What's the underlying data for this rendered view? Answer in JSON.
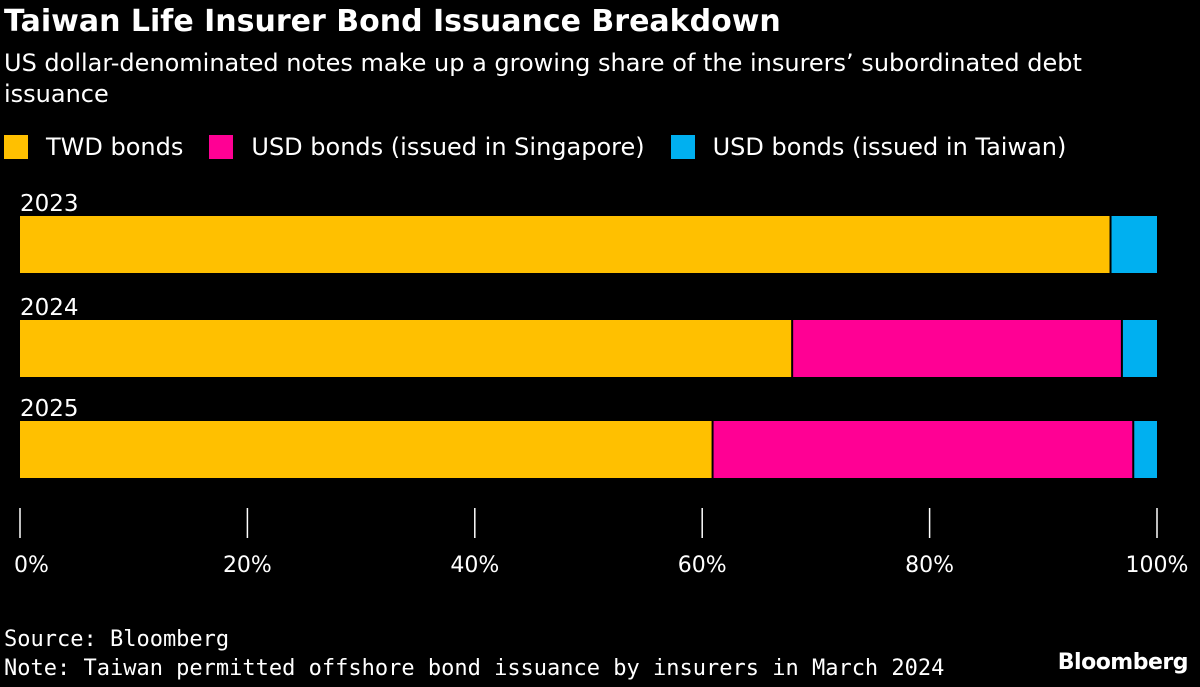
{
  "header": {
    "title": "Taiwan Life Insurer Bond Issuance Breakdown",
    "subtitle": "US dollar-denominated notes make up a growing share of the insurers’ subordinated debt issuance"
  },
  "legend": [
    {
      "label": "TWD bonds",
      "color": "#FFC000"
    },
    {
      "label": "USD bonds (issued in Singapore)",
      "color": "#FF0094"
    },
    {
      "label": "USD bonds (issued in Taiwan)",
      "color": "#00B0F0"
    }
  ],
  "chart_data": {
    "type": "bar",
    "orientation": "horizontal",
    "stacked": true,
    "categories": [
      "2023",
      "2024",
      "2025"
    ],
    "series": [
      {
        "name": "TWD bonds",
        "color": "#FFC000",
        "values": [
          96,
          68,
          61
        ]
      },
      {
        "name": "USD bonds (issued in Singapore)",
        "color": "#FF0094",
        "values": [
          0,
          29,
          37
        ]
      },
      {
        "name": "USD bonds (issued in Taiwan)",
        "color": "#00B0F0",
        "values": [
          4,
          3,
          2
        ]
      }
    ],
    "xlim": [
      0,
      100
    ],
    "xticks": [
      0,
      20,
      40,
      60,
      80,
      100
    ],
    "xtick_labels": [
      "0%",
      "20%",
      "40%",
      "60%",
      "80%",
      "100%"
    ],
    "xlabel": "",
    "ylabel": ""
  },
  "footer": {
    "source": "Source: Bloomberg",
    "note": "Note: Taiwan permitted offshore bond issuance by insurers in March 2024",
    "brand": "Bloomberg"
  }
}
